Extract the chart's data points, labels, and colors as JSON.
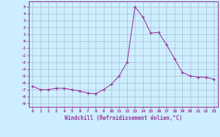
{
  "x": [
    0,
    1,
    2,
    3,
    4,
    5,
    6,
    7,
    8,
    9,
    10,
    11,
    12,
    13,
    14,
    15,
    16,
    17,
    18,
    19,
    20,
    21,
    22,
    23
  ],
  "y": [
    -6.5,
    -7.0,
    -7.0,
    -6.8,
    -6.8,
    -7.0,
    -7.2,
    -7.5,
    -7.6,
    -7.0,
    -6.2,
    -5.0,
    -3.0,
    5.0,
    3.5,
    1.2,
    1.3,
    -0.5,
    -2.5,
    -4.5,
    -5.0,
    -5.2,
    -5.2,
    -5.5
  ],
  "line_color": "#993399",
  "marker": "+",
  "bg_color": "#cceeff",
  "grid_color": "#aabbcc",
  "xlabel": "Windchill (Refroidissement éolien,°C)",
  "ylabel_ticks": [
    "5",
    "4",
    "3",
    "2",
    "1",
    "0",
    "-1",
    "-2",
    "-3",
    "-4",
    "-5",
    "-6",
    "-7",
    "-8",
    "-9"
  ],
  "ytick_vals": [
    5,
    4,
    3,
    2,
    1,
    0,
    -1,
    -2,
    -3,
    -4,
    -5,
    -6,
    -7,
    -8,
    -9
  ],
  "ylim": [
    -9.5,
    5.8
  ],
  "xlim": [
    -0.5,
    23.5
  ]
}
